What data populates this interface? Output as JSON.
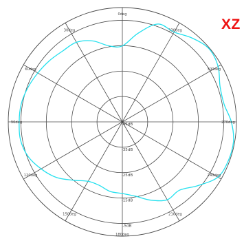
{
  "plane_label": "XZ",
  "chart_data": {
    "type": "polar-line",
    "title": "",
    "angle_direction": "counterclockwise",
    "zero_at": "top",
    "angle_ticks": [
      {
        "deg": 0,
        "label": "0deg"
      },
      {
        "deg": 30,
        "label": "30deg"
      },
      {
        "deg": 60,
        "label": "60deg"
      },
      {
        "deg": 90,
        "label": "90deg"
      },
      {
        "deg": 120,
        "label": "120deg"
      },
      {
        "deg": 150,
        "label": "150deg"
      },
      {
        "deg": 180,
        "label": "180deg"
      },
      {
        "deg": 210,
        "label": "210deg"
      },
      {
        "deg": 240,
        "label": "240deg"
      },
      {
        "deg": 270,
        "label": "270deg"
      },
      {
        "deg": 300,
        "label": "300deg"
      },
      {
        "deg": 330,
        "label": "330deg"
      }
    ],
    "radial_range_db": [
      -45,
      0
    ],
    "radial_ticks": [
      {
        "db": -45,
        "label": "-45dB"
      },
      {
        "db": -35,
        "label": "-35dB"
      },
      {
        "db": -25,
        "label": "-25dB"
      },
      {
        "db": -15,
        "label": "-15dB"
      },
      {
        "db": -5,
        "label": "-5dB"
      }
    ],
    "grid": true,
    "series": [
      {
        "color": "#22e0ee",
        "angle_deg": [
          0,
          10,
          20,
          30,
          40,
          50,
          60,
          70,
          80,
          90,
          100,
          110,
          120,
          130,
          140,
          150,
          160,
          170,
          180,
          190,
          200,
          210,
          220,
          230,
          240,
          250,
          260,
          270,
          280,
          290,
          300,
          310,
          320,
          330,
          340,
          350
        ],
        "db": [
          -15.1,
          -14.6,
          -11.1,
          -8.8,
          -8.5,
          -7.5,
          -6.5,
          -5.4,
          -4.5,
          -4.3,
          -4.2,
          -5.4,
          -8.0,
          -11.0,
          -15.0,
          -18.0,
          -18.4,
          -17.2,
          -16.8,
          -15.3,
          -12.2,
          -9.6,
          -9.9,
          -6.0,
          -1.5,
          -0.5,
          -0.5,
          -2.0,
          -4.3,
          -4.0,
          -1.4,
          -0.3,
          -2.0,
          -4.2,
          -4.0,
          -9.6
        ]
      }
    ]
  }
}
